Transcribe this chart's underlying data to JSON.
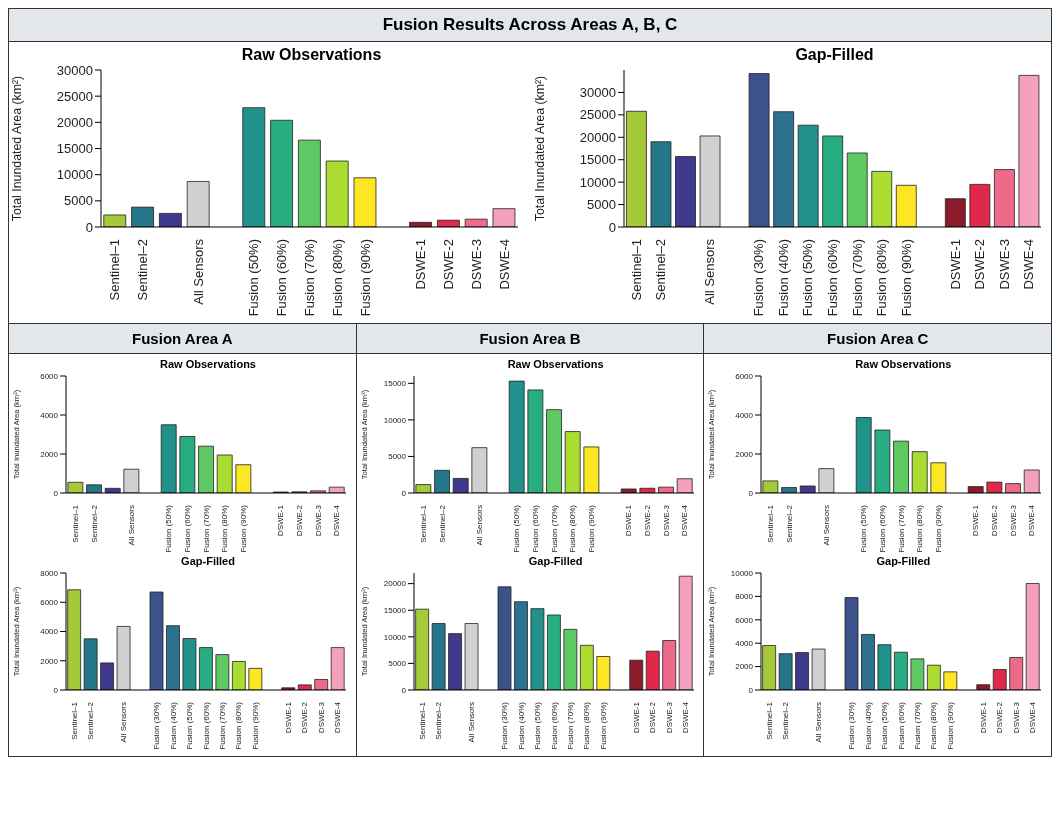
{
  "chart_data": [
    {
      "type": "bar",
      "title": "Raw Observations",
      "ylabel": "Total Inundated Area (km²)",
      "annotations": [
        "Fusion Results Across Areas A, B, C"
      ],
      "categories": [
        "Sentinel–1",
        "Sentinel–2",
        null,
        "All Sensors",
        null,
        "Fusion (50%)",
        "Fusion (60%)",
        "Fusion (70%)",
        "Fusion (80%)",
        "Fusion (90%)",
        null,
        "DSWE-1",
        "DSWE-2",
        "DSWE-3",
        "DSWE-4"
      ],
      "values": [
        2300,
        3800,
        2600,
        8700,
        null,
        22800,
        20400,
        16600,
        12600,
        9400,
        null,
        900,
        1300,
        1500,
        3500
      ],
      "colors": [
        "#a6c93a",
        "#26768a",
        "#3f3a8c",
        "#d0d0d0",
        "#ffffff",
        "#21918c",
        "#27ad81",
        "#5ec962",
        "#aadc32",
        "#fde725",
        "#ffffff",
        "#8b1a2b",
        "#e0294a",
        "#ee6a8a",
        "#f5a0bd"
      ],
      "ylim": [
        0,
        30000
      ],
      "yticks": [
        0,
        5000,
        10000,
        15000,
        20000,
        25000,
        30000
      ]
    },
    {
      "type": "bar",
      "title": "Gap-Filled",
      "ylabel": "Total Inundated Area (km²)",
      "categories": [
        "Sentinel–1",
        "Sentinel–2",
        null,
        "All Sensors",
        null,
        "Fusion (30%)",
        "Fusion (40%)",
        "Fusion (50%)",
        "Fusion (60%)",
        "Fusion (70%)",
        "Fusion (80%)",
        "Fusion (90%)",
        null,
        "DSWE-1",
        "DSWE-2",
        "DSWE-3",
        "DSWE-4"
      ],
      "values": [
        25800,
        19000,
        15700,
        20300,
        null,
        34200,
        25700,
        22700,
        20300,
        16500,
        12400,
        9300,
        null,
        6300,
        9500,
        12800,
        33800
      ],
      "colors": [
        "#a6c93a",
        "#26768a",
        "#3f3a8c",
        "#d0d0d0",
        "#ffffff",
        "#3b528b",
        "#2c728e",
        "#21918c",
        "#27ad81",
        "#5ec962",
        "#aadc32",
        "#fde725",
        "#ffffff",
        "#8b1a2b",
        "#e0294a",
        "#ee6a8a",
        "#f5a0bd"
      ],
      "ylim": [
        0,
        35000
      ],
      "yticks": [
        0,
        5000,
        10000,
        15000,
        20000,
        25000,
        30000
      ]
    },
    {
      "type": "bar",
      "title": "Raw Observations",
      "ylabel": "Total Inundated Area (km²)",
      "annotations": [
        "Fusion Area A"
      ],
      "categories": [
        "Sentinel–1",
        "Sentinel–2",
        null,
        "All Sensors",
        null,
        "Fusion (50%)",
        "Fusion (60%)",
        "Fusion (70%)",
        "Fusion (80%)",
        "Fusion (90%)",
        null,
        "DSWE-1",
        "DSWE-2",
        "DSWE-3",
        "DSWE-4"
      ],
      "values": [
        550,
        420,
        240,
        1220,
        null,
        3500,
        2900,
        2400,
        1950,
        1450,
        null,
        50,
        60,
        110,
        300
      ],
      "colors": [
        "#a6c93a",
        "#26768a",
        "#3f3a8c",
        "#d0d0d0",
        "#ffffff",
        "#21918c",
        "#27ad81",
        "#5ec962",
        "#aadc32",
        "#fde725",
        "#ffffff",
        "#8b1a2b",
        "#e0294a",
        "#ee6a8a",
        "#f5a0bd"
      ],
      "ylim": [
        0,
        6000
      ],
      "yticks": [
        0,
        2000,
        4000,
        6000
      ]
    },
    {
      "type": "bar",
      "title": "Gap-Filled",
      "ylabel": "Total Inundated Area (km²)",
      "categories": [
        "Sentinel–1",
        "Sentinel–2",
        null,
        "All Sensors",
        null,
        "Fusion (30%)",
        "Fusion (40%)",
        "Fusion (50%)",
        "Fusion (60%)",
        "Fusion (70%)",
        "Fusion (80%)",
        "Fusion (90%)",
        null,
        "DSWE-1",
        "DSWE-2",
        "DSWE-3",
        "DSWE-4"
      ],
      "values": [
        6850,
        3500,
        1850,
        4350,
        null,
        6700,
        4400,
        3520,
        2900,
        2420,
        1950,
        1480,
        null,
        150,
        350,
        720,
        2900
      ],
      "colors": [
        "#a6c93a",
        "#26768a",
        "#3f3a8c",
        "#d0d0d0",
        "#ffffff",
        "#3b528b",
        "#2c728e",
        "#21918c",
        "#27ad81",
        "#5ec962",
        "#aadc32",
        "#fde725",
        "#ffffff",
        "#8b1a2b",
        "#e0294a",
        "#ee6a8a",
        "#f5a0bd"
      ],
      "ylim": [
        0,
        8000
      ],
      "yticks": [
        0,
        2000,
        4000,
        6000,
        8000
      ]
    },
    {
      "type": "bar",
      "title": "Raw Observations",
      "ylabel": "Total Inundated Area (km²)",
      "annotations": [
        "Fusion Area B"
      ],
      "categories": [
        "Sentinel–1",
        "Sentinel–2",
        null,
        "All Sensors",
        null,
        "Fusion (50%)",
        "Fusion (60%)",
        "Fusion (70%)",
        "Fusion (80%)",
        "Fusion (90%)",
        null,
        "DSWE-1",
        "DSWE-2",
        "DSWE-3",
        "DSWE-4"
      ],
      "values": [
        1150,
        3100,
        2000,
        6200,
        null,
        15300,
        14100,
        11400,
        8400,
        6300,
        null,
        550,
        650,
        800,
        1950
      ],
      "colors": [
        "#a6c93a",
        "#26768a",
        "#3f3a8c",
        "#d0d0d0",
        "#ffffff",
        "#21918c",
        "#27ad81",
        "#5ec962",
        "#aadc32",
        "#fde725",
        "#ffffff",
        "#8b1a2b",
        "#e0294a",
        "#ee6a8a",
        "#f5a0bd"
      ],
      "ylim": [
        0,
        16000
      ],
      "yticks": [
        0,
        5000,
        10000,
        15000
      ]
    },
    {
      "type": "bar",
      "title": "Gap-Filled",
      "ylabel": "Total Inundated Area (km²)",
      "categories": [
        "Sentinel–1",
        "Sentinel–2",
        null,
        "All Sensors",
        null,
        "Fusion (30%)",
        "Fusion (40%)",
        "Fusion (50%)",
        "Fusion (60%)",
        "Fusion (70%)",
        "Fusion (80%)",
        "Fusion (90%)",
        null,
        "DSWE-1",
        "DSWE-2",
        "DSWE-3",
        "DSWE-4"
      ],
      "values": [
        15200,
        12500,
        10600,
        12500,
        null,
        19400,
        16600,
        15300,
        14100,
        11400,
        8400,
        6300,
        null,
        5600,
        7300,
        9300,
        21400
      ],
      "colors": [
        "#a6c93a",
        "#26768a",
        "#3f3a8c",
        "#d0d0d0",
        "#ffffff",
        "#3b528b",
        "#2c728e",
        "#21918c",
        "#27ad81",
        "#5ec962",
        "#aadc32",
        "#fde725",
        "#ffffff",
        "#8b1a2b",
        "#e0294a",
        "#ee6a8a",
        "#f5a0bd"
      ],
      "ylim": [
        0,
        22000
      ],
      "yticks": [
        0,
        5000,
        10000,
        15000,
        20000
      ]
    },
    {
      "type": "bar",
      "title": "Raw Observations",
      "ylabel": "Total Inundated Area (km²)",
      "annotations": [
        "Fusion Area C"
      ],
      "categories": [
        "Sentinel–1",
        "Sentinel–2",
        null,
        "All Sensors",
        null,
        "Fusion (50%)",
        "Fusion (60%)",
        "Fusion (70%)",
        "Fusion (80%)",
        "Fusion (90%)",
        null,
        "DSWE-1",
        "DSWE-2",
        "DSWE-3",
        "DSWE-4"
      ],
      "values": [
        620,
        280,
        360,
        1250,
        null,
        3870,
        3230,
        2660,
        2120,
        1550,
        null,
        330,
        560,
        480,
        1180
      ],
      "colors": [
        "#a6c93a",
        "#26768a",
        "#3f3a8c",
        "#d0d0d0",
        "#ffffff",
        "#21918c",
        "#27ad81",
        "#5ec962",
        "#aadc32",
        "#fde725",
        "#ffffff",
        "#8b1a2b",
        "#e0294a",
        "#ee6a8a",
        "#f5a0bd"
      ],
      "ylim": [
        0,
        6000
      ],
      "yticks": [
        0,
        2000,
        4000,
        6000
      ]
    },
    {
      "type": "bar",
      "title": "Gap-Filled",
      "ylabel": "Total Inundated Area (km²)",
      "categories": [
        "Sentinel–1",
        "Sentinel–2",
        null,
        "All Sensors",
        null,
        "Fusion (30%)",
        "Fusion (40%)",
        "Fusion (50%)",
        "Fusion (60%)",
        "Fusion (70%)",
        "Fusion (80%)",
        "Fusion (90%)",
        null,
        "DSWE-1",
        "DSWE-2",
        "DSWE-3",
        "DSWE-4"
      ],
      "values": [
        3800,
        3100,
        3200,
        3500,
        null,
        7900,
        4750,
        3870,
        3230,
        2660,
        2120,
        1550,
        null,
        450,
        1750,
        2780,
        9100
      ],
      "colors": [
        "#a6c93a",
        "#26768a",
        "#3f3a8c",
        "#d0d0d0",
        "#ffffff",
        "#3b528b",
        "#2c728e",
        "#21918c",
        "#27ad81",
        "#5ec962",
        "#aadc32",
        "#fde725",
        "#ffffff",
        "#8b1a2b",
        "#e0294a",
        "#ee6a8a",
        "#f5a0bd"
      ],
      "ylim": [
        0,
        10000
      ],
      "yticks": [
        0,
        2000,
        4000,
        6000,
        8000,
        10000
      ]
    }
  ]
}
